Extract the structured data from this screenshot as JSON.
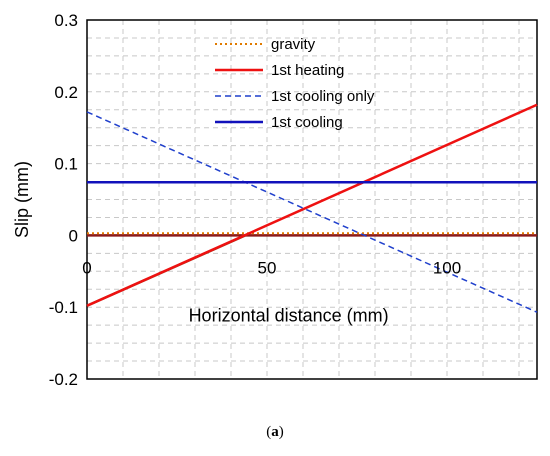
{
  "chart_data": {
    "type": "line",
    "xlabel": "Horizontal distance (mm)",
    "ylabel": "Slip (mm)",
    "xlim": [
      0,
      125
    ],
    "ylim": [
      -0.2,
      0.3
    ],
    "x_ticks": [
      0,
      50,
      100
    ],
    "x_tick_labels": [
      "0",
      "50",
      "100"
    ],
    "y_ticks": [
      -0.2,
      -0.1,
      0,
      0.1,
      0.2,
      0.3
    ],
    "y_tick_labels": [
      "-0.2",
      "-0.1",
      "0",
      "0.1",
      "0.2",
      "0.3"
    ],
    "grid": "dashed major and minor",
    "legend_position": "top-center",
    "series": [
      {
        "name": "gravity",
        "color": "#e07b00",
        "dash": "dotted",
        "x": [
          0,
          125
        ],
        "y": [
          0.003,
          0.003
        ]
      },
      {
        "name": "1st heating",
        "color": "#ee1111",
        "dash": "solid",
        "x": [
          0,
          125
        ],
        "y": [
          -0.098,
          0.182
        ]
      },
      {
        "name": "1st cooling only",
        "color": "#1f3fcc",
        "dash": "dashed",
        "x": [
          0,
          125
        ],
        "y": [
          0.172,
          -0.107
        ]
      },
      {
        "name": "1st cooling",
        "color": "#1111bb",
        "dash": "solid",
        "x": [
          0,
          125
        ],
        "y": [
          0.074,
          0.074
        ]
      }
    ],
    "extra_lines": [
      {
        "color": "#8b1a1a",
        "x": [
          0,
          125
        ],
        "y": [
          0,
          0
        ]
      },
      {
        "color": "#8b3a1a",
        "x": [
          0,
          44
        ],
        "y": [
          -0.098,
          0.0
        ]
      }
    ]
  },
  "caption": {
    "open": "(",
    "letter": "a",
    "close": ")"
  }
}
